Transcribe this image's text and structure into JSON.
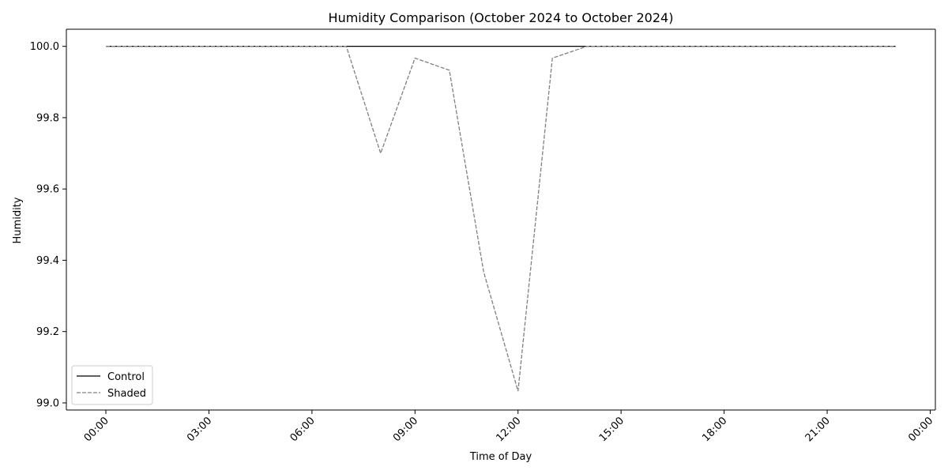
{
  "chart_data": {
    "type": "line",
    "title": "Humidity Comparison (October 2024 to October 2024)",
    "xlabel": "Time of Day",
    "ylabel": "Humidity",
    "x_ticks": [
      "00:00",
      "03:00",
      "06:00",
      "09:00",
      "12:00",
      "15:00",
      "18:00",
      "21:00",
      "00:00"
    ],
    "x_tick_hours": [
      0,
      3,
      6,
      9,
      12,
      15,
      18,
      21,
      24
    ],
    "xlim": [
      -1.15,
      24.15
    ],
    "y_ticks": [
      "99.0",
      "99.2",
      "99.4",
      "99.6",
      "99.8",
      "100.0"
    ],
    "y_tick_values": [
      99.0,
      99.2,
      99.4,
      99.6,
      99.8,
      100.0
    ],
    "ylim": [
      98.98,
      100.048
    ],
    "x": [
      "00:00",
      "01:00",
      "02:00",
      "03:00",
      "04:00",
      "05:00",
      "06:00",
      "07:00",
      "08:00",
      "09:00",
      "10:00",
      "11:00",
      "12:00",
      "13:00",
      "14:00",
      "15:00",
      "16:00",
      "17:00",
      "18:00",
      "19:00",
      "20:00",
      "21:00",
      "22:00",
      "23:00"
    ],
    "x_hours": [
      0,
      1,
      2,
      3,
      4,
      5,
      6,
      7,
      8,
      9,
      10,
      11,
      12,
      13,
      14,
      15,
      16,
      17,
      18,
      19,
      20,
      21,
      22,
      23
    ],
    "series": [
      {
        "name": "Control",
        "color": "#000000",
        "style": "solid",
        "values": [
          100,
          100,
          100,
          100,
          100,
          100,
          100,
          100,
          100,
          100,
          100,
          100,
          100,
          100,
          100,
          100,
          100,
          100,
          100,
          100,
          100,
          100,
          100,
          100
        ]
      },
      {
        "name": "Shaded",
        "color": "#808080",
        "style": "dashed",
        "values": [
          100,
          100,
          100,
          100,
          100,
          100,
          100,
          100,
          99.7,
          99.967,
          99.933,
          99.367,
          99.033,
          99.967,
          100,
          100,
          100,
          100,
          100,
          100,
          100,
          100,
          100,
          100
        ]
      }
    ],
    "grid": false,
    "legend_position": "lower-left"
  }
}
